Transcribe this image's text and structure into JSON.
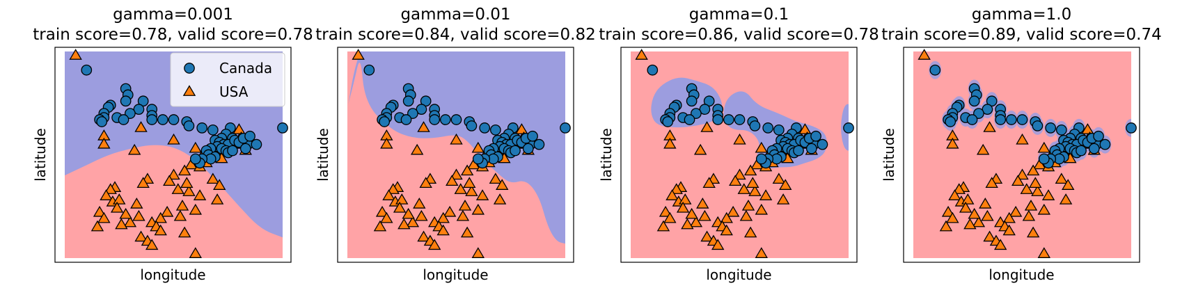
{
  "chart_data": [
    {
      "type": "scatter",
      "title": "gamma=0.001",
      "subtitle": "train score=0.78, valid score=0.78",
      "xlabel": "longitude",
      "ylabel": "latitude",
      "xlim": [
        0,
        100
      ],
      "ylim": [
        0,
        100
      ],
      "ticks": false,
      "legend": {
        "placement": "top-right",
        "entries": [
          "Canada",
          "USA"
        ]
      },
      "region_colors": {
        "Canada": "#9c9ddf",
        "USA": "#ffa3a6"
      },
      "boundary": [
        [
          0,
          40
        ],
        [
          10,
          45
        ],
        [
          20,
          50
        ],
        [
          30,
          53
        ],
        [
          40,
          55
        ],
        [
          50,
          54
        ],
        [
          60,
          48
        ],
        [
          70,
          37
        ],
        [
          80,
          25
        ],
        [
          90,
          14
        ],
        [
          100,
          10
        ]
      ]
    },
    {
      "type": "scatter",
      "title": "gamma=0.01",
      "subtitle": "train score=0.84, valid score=0.82",
      "xlabel": "longitude",
      "ylabel": "latitude",
      "xlim": [
        0,
        100
      ],
      "ylim": [
        0,
        100
      ],
      "ticks": false,
      "region_colors": {
        "Canada": "#9c9ddf",
        "USA": "#ffa3a6"
      },
      "boundary": [
        [
          0,
          73
        ],
        [
          3,
          85
        ],
        [
          6,
          99
        ],
        [
          8,
          75
        ],
        [
          20,
          62
        ],
        [
          30,
          58
        ],
        [
          40,
          58
        ],
        [
          50,
          60
        ],
        [
          55,
          57
        ],
        [
          62,
          48
        ],
        [
          70,
          40
        ],
        [
          75,
          36
        ],
        [
          82,
          38
        ],
        [
          88,
          30
        ],
        [
          92,
          15
        ],
        [
          96,
          8
        ],
        [
          100,
          7
        ]
      ]
    },
    {
      "type": "scatter",
      "title": "gamma=0.1",
      "subtitle": "train score=0.86, valid score=0.78",
      "xlabel": "longitude",
      "ylabel": "latitude",
      "xlim": [
        0,
        100
      ],
      "ylim": [
        0,
        100
      ],
      "ticks": false,
      "region_colors": {
        "Canada": "#9c9ddf",
        "USA": "#ffa3a6"
      }
    },
    {
      "type": "scatter",
      "title": "gamma=1.0",
      "subtitle": "train score=0.89, valid score=0.74",
      "xlabel": "longitude",
      "ylabel": "latitude",
      "xlim": [
        0,
        100
      ],
      "ylim": [
        0,
        100
      ],
      "ticks": false,
      "region_colors": {
        "Canada": "#9c9ddf",
        "USA": "#ffa3a6"
      }
    }
  ],
  "points": {
    "Canada": {
      "marker": "circle",
      "color": "#1f77b4",
      "xy": [
        [
          10,
          91
        ],
        [
          28,
          82
        ],
        [
          29,
          79
        ],
        [
          28,
          76
        ],
        [
          21,
          74
        ],
        [
          36,
          76
        ],
        [
          20,
          73
        ],
        [
          34,
          72
        ],
        [
          40,
          72
        ],
        [
          18,
          70
        ],
        [
          30,
          70
        ],
        [
          40,
          69
        ],
        [
          24,
          68
        ],
        [
          27,
          67
        ],
        [
          18,
          68
        ],
        [
          16,
          67
        ],
        [
          17,
          66
        ],
        [
          40,
          67
        ],
        [
          45,
          67
        ],
        [
          50,
          67
        ],
        [
          56,
          66
        ],
        [
          57,
          64
        ],
        [
          63,
          63
        ],
        [
          68,
          62
        ],
        [
          76,
          63
        ],
        [
          74,
          60
        ],
        [
          72,
          58
        ],
        [
          77,
          58
        ],
        [
          69,
          57
        ],
        [
          71,
          56
        ],
        [
          73,
          55
        ],
        [
          75,
          55
        ],
        [
          70,
          54
        ],
        [
          67,
          53
        ],
        [
          65,
          52
        ],
        [
          72,
          53
        ],
        [
          74,
          52
        ],
        [
          75,
          51
        ],
        [
          66,
          50
        ],
        [
          69,
          49
        ],
        [
          67,
          48
        ],
        [
          63,
          48
        ],
        [
          62,
          46
        ],
        [
          78,
          57
        ],
        [
          80,
          56
        ],
        [
          84,
          55
        ],
        [
          83,
          53
        ],
        [
          88,
          55
        ],
        [
          82,
          58
        ],
        [
          85,
          59
        ],
        [
          77,
          52
        ],
        [
          60,
          48
        ],
        [
          100,
          63
        ]
      ]
    },
    "USA": {
      "marker": "triangle",
      "color": "#ff7f0e",
      "xy": [
        [
          5,
          98
        ],
        [
          80,
          62
        ],
        [
          81,
          58
        ],
        [
          78,
          55
        ],
        [
          80,
          57
        ],
        [
          82,
          55
        ],
        [
          83,
          52
        ],
        [
          76,
          52
        ],
        [
          18,
          59
        ],
        [
          18,
          55
        ],
        [
          35,
          63
        ],
        [
          32,
          52
        ],
        [
          50,
          57
        ],
        [
          60,
          53
        ],
        [
          63,
          49
        ],
        [
          70,
          52
        ],
        [
          72,
          48
        ],
        [
          65,
          46
        ],
        [
          58,
          45
        ],
        [
          62,
          44
        ],
        [
          55,
          42
        ],
        [
          50,
          40
        ],
        [
          48,
          37
        ],
        [
          38,
          38
        ],
        [
          36,
          36
        ],
        [
          52,
          33
        ],
        [
          57,
          32
        ],
        [
          56,
          36
        ],
        [
          68,
          38
        ],
        [
          71,
          35
        ],
        [
          62,
          30
        ],
        [
          70,
          28
        ],
        [
          60,
          23
        ],
        [
          54,
          25
        ],
        [
          53,
          20
        ],
        [
          47,
          22
        ],
        [
          44,
          19
        ],
        [
          40,
          17
        ],
        [
          42,
          15
        ],
        [
          44,
          13
        ],
        [
          23,
          34
        ],
        [
          21,
          33
        ],
        [
          19,
          30
        ],
        [
          22,
          27
        ],
        [
          25,
          28
        ],
        [
          24,
          24
        ],
        [
          33,
          26
        ],
        [
          34,
          20
        ],
        [
          30,
          17
        ],
        [
          28,
          21
        ],
        [
          26,
          16
        ],
        [
          16,
          22
        ],
        [
          18,
          19
        ],
        [
          15,
          15
        ],
        [
          35,
          10
        ],
        [
          38,
          8
        ],
        [
          40,
          6
        ],
        [
          60,
          2
        ],
        [
          55,
          12
        ]
      ]
    }
  }
}
